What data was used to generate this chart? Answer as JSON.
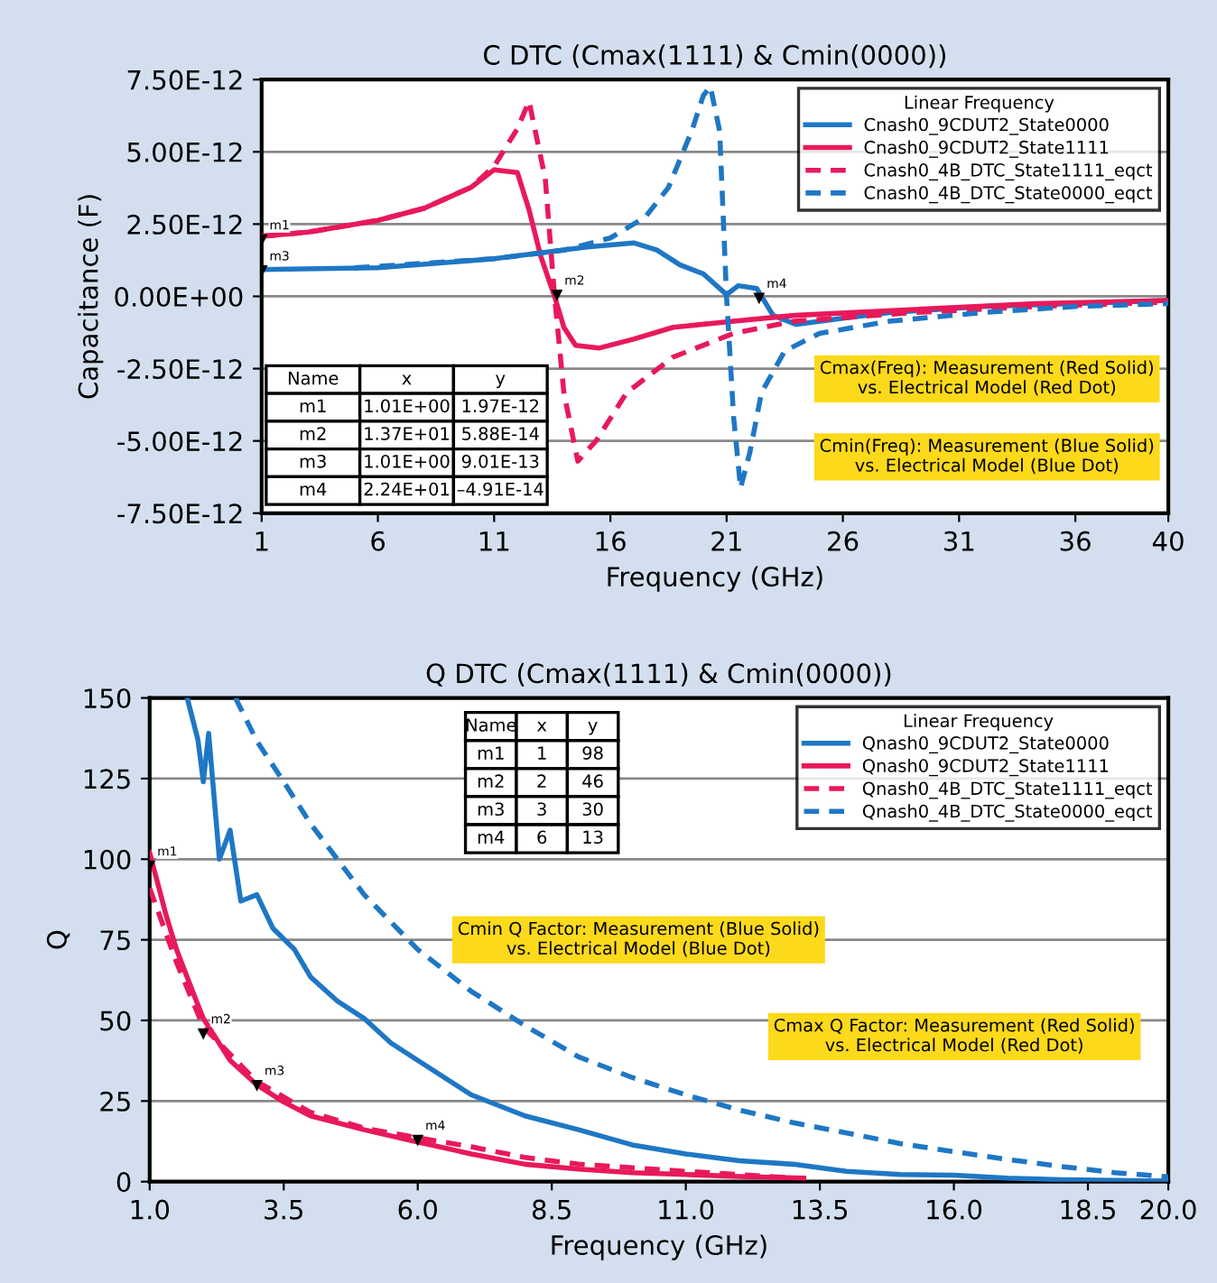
{
  "chart_data": [
    {
      "type": "line",
      "title": "C DTC (Cmax(1111) & Cmin(0000))",
      "xlabel": "Frequency (GHz)",
      "ylabel": "Capacitance (F)",
      "legend_title": "Linear Frequency",
      "legend": "top right",
      "grid": "y",
      "xlim": [
        1,
        40
      ],
      "xticks": [
        1,
        6,
        11,
        16,
        21,
        26,
        31,
        36,
        40
      ],
      "ylim": [
        -7.5e-12,
        7.5e-12
      ],
      "yticks": [
        {
          "value": -7.5e-12,
          "label": "-7.50E-12"
        },
        {
          "value": -5e-12,
          "label": "-5.00E-12"
        },
        {
          "value": -2.5e-12,
          "label": "-2.50E-12"
        },
        {
          "value": 0,
          "label": "0.00E+00"
        },
        {
          "value": 2.5e-12,
          "label": "2.50E-12"
        },
        {
          "value": 5e-12,
          "label": "5.00E-12"
        },
        {
          "value": 7.5e-12,
          "label": "7.50E-12"
        }
      ],
      "series": [
        {
          "name": "Cnash0_9CDUT2_State0000",
          "color": "#1f77c4",
          "line_style": "solid",
          "x": [
            1,
            6,
            11,
            15,
            17,
            18,
            19,
            20,
            21,
            21.5,
            22.3,
            23,
            24,
            26,
            28,
            32,
            36,
            40
          ],
          "values": [
            9.3e-13,
            9.9e-13,
            1.3e-12,
            1.71e-12,
            1.85e-12,
            1.6e-12,
            1.09e-12,
            7.8e-13,
            6e-14,
            3.7e-13,
            2.7e-13,
            -6.6e-13,
            -9.7e-13,
            -7.6e-13,
            -5.6e-13,
            -3.5e-13,
            -2.5e-13,
            -1.4e-13
          ]
        },
        {
          "name": "Cnash0_9CDUT2_State1111",
          "color": "#e8195a",
          "line_style": "solid",
          "x": [
            1,
            3,
            6,
            8,
            10,
            11,
            12,
            12.5,
            13,
            13.6,
            14,
            14.5,
            15.5,
            17,
            18.7,
            21.3,
            23.9,
            29.1,
            34.3,
            40
          ],
          "values": [
            2.08e-12,
            2.22e-12,
            2.63e-12,
            3.05e-12,
            3.77e-12,
            4.38e-12,
            4.28e-12,
            3e-12,
            1.4e-12,
            0,
            -1.07e-12,
            -1.69e-12,
            -1.79e-12,
            -1.48e-12,
            -1.07e-12,
            -8.6e-13,
            -6.6e-13,
            -4.5e-13,
            -2.5e-13,
            -1.4e-13
          ]
        },
        {
          "name": "Cnash0_4B_DTC_State1111_eqct",
          "color": "#e8195a",
          "line_style": "dashed",
          "x": [
            1,
            3,
            6,
            8,
            10,
            11,
            12,
            12.5,
            13.2,
            13.6,
            14,
            14.6,
            15.4,
            16.7,
            18.7,
            21.3,
            23.9,
            29.1,
            34.3,
            40
          ],
          "values": [
            2.08e-12,
            2.22e-12,
            2.63e-12,
            3.05e-12,
            3.77e-12,
            4.5e-12,
            5.8e-12,
            6.75e-12,
            4.07e-12,
            0,
            -3.33e-12,
            -5.7e-12,
            -4.98e-12,
            -3.33e-12,
            -2.1e-12,
            -1.28e-12,
            -8.6e-13,
            -5.6e-13,
            -3.5e-13,
            -2e-13
          ]
        },
        {
          "name": "Cnash0_4B_DTC_State0000_eqct",
          "color": "#1f77c4",
          "line_style": "dashed",
          "x": [
            5,
            11,
            14,
            16,
            17.5,
            18.5,
            19.5,
            20,
            20.3,
            20.7,
            21,
            21.3,
            21.6,
            22,
            22.5,
            23.5,
            25,
            28,
            32,
            36,
            40
          ],
          "values": [
            9.9e-13,
            1.3e-12,
            1.6e-12,
            2.02e-12,
            2.74e-12,
            3.77e-12,
            5.72e-12,
            6.95e-12,
            7.26e-12,
            5.72e-12,
            -4e-14,
            -4.16e-12,
            -6.63e-12,
            -5.4e-12,
            -3.33e-12,
            -1.89e-12,
            -1.28e-12,
            -8.6e-13,
            -5.6e-13,
            -3.5e-13,
            -2.5e-13
          ]
        }
      ],
      "annotations": [
        "Cmax(Freq): Measurement (Red Solid)\nvs. Electrical Model (Red Dot)",
        "Cmin(Freq): Measurement (Blue Solid)\nvs. Electrical Model (Blue Dot)",
        "Name\tx\ty\nm1\t1.01E+00\t1.97E-12\nm2\t1.37E+01\t5.88E-14\nm3\t1.01E+00\t9.01E-13\nm4\t2.24E+01\t–4.91E-14",
        {
          "text": "m1",
          "x": 1.01,
          "y": 1.97e-12
        },
        {
          "text": "m2",
          "x": 13.7,
          "y": 5.88e-14
        },
        {
          "text": "m3",
          "x": 1.01,
          "y": 9.01e-13
        },
        {
          "text": "m4",
          "x": 22.4,
          "y": -4.91e-14
        }
      ]
    },
    {
      "type": "line",
      "title": "Q DTC (Cmax(1111) & Cmin(0000))",
      "xlabel": "Frequency (GHz)",
      "ylabel": "Q",
      "legend_title": "Linear Frequency",
      "legend": "top right",
      "grid": "y",
      "xlim": [
        1.0,
        20.0
      ],
      "xticks": [
        {
          "value": 1.0,
          "label": "1.0"
        },
        {
          "value": 3.5,
          "label": "3.5"
        },
        {
          "value": 6.0,
          "label": "6.0"
        },
        {
          "value": 8.5,
          "label": "8.5"
        },
        {
          "value": 11.0,
          "label": "11.0"
        },
        {
          "value": 13.5,
          "label": "13.5"
        },
        {
          "value": 16.0,
          "label": "16.0"
        },
        {
          "value": 18.5,
          "label": "18.5"
        },
        {
          "value": 20.0,
          "label": "20.0"
        }
      ],
      "ylim": [
        0,
        150
      ],
      "yticks": [
        0,
        25,
        50,
        75,
        100,
        125,
        150
      ],
      "series": [
        {
          "name": "Qnash0_9CDUT2_State0000",
          "color": "#1f77c4",
          "line_style": "solid",
          "x": [
            1.7,
            1.9,
            2.0,
            2.1,
            2.3,
            2.5,
            2.7,
            3.0,
            3.3,
            3.7,
            4,
            4.5,
            5,
            5.5,
            6,
            7,
            8,
            9,
            10,
            11,
            12,
            13,
            14,
            15,
            16,
            17,
            18,
            19,
            20
          ],
          "values": [
            150,
            137,
            124,
            139,
            100,
            109,
            87,
            89,
            78.5,
            72,
            63.5,
            56,
            50.6,
            43,
            37.6,
            26.9,
            20.4,
            16.1,
            11.4,
            8.6,
            6.5,
            5.4,
            3.2,
            2.2,
            2,
            1.1,
            0.6,
            0.4,
            0.2
          ]
        },
        {
          "name": "Qnash0_9CDUT2_State1111",
          "color": "#e8195a",
          "line_style": "solid",
          "x": [
            1,
            1.3,
            1.5,
            1.8,
            2,
            2.5,
            3,
            3.5,
            4,
            5,
            6,
            7,
            8,
            9,
            10,
            11,
            12,
            13.2
          ],
          "values": [
            102,
            83,
            72,
            59,
            50.6,
            37.6,
            30,
            24.7,
            20.4,
            16.1,
            12.3,
            8.6,
            5.4,
            3.9,
            2.8,
            2.2,
            1.6,
            1.1
          ]
        },
        {
          "name": "Qnash0_4B_DTC_State1111_eqct",
          "color": "#e8195a",
          "line_style": "dashed",
          "x": [
            1,
            1.5,
            2,
            3,
            4,
            5,
            6,
            7,
            8,
            9,
            10,
            11,
            12,
            13
          ],
          "values": [
            91,
            68,
            48,
            31,
            21.5,
            16.6,
            13.6,
            10.8,
            7.5,
            5.4,
            4.3,
            3.2,
            2.2,
            1.1
          ]
        },
        {
          "name": "Qnash0_4B_DTC_State0000_eqct",
          "color": "#1f77c4",
          "line_style": "dashed",
          "x": [
            2.6,
            3,
            3.5,
            4,
            5,
            6,
            7,
            8,
            9,
            10,
            11,
            12,
            13,
            14,
            15,
            16,
            17,
            18,
            19,
            20
          ],
          "values": [
            150,
            136.6,
            124,
            111,
            89,
            72,
            59,
            48.4,
            38.7,
            32.3,
            26.9,
            22.2,
            18.3,
            15.1,
            11.8,
            9.3,
            6.9,
            4.7,
            2.8,
            1.5
          ]
        }
      ],
      "annotations": [
        "Cmin Q Factor: Measurement (Blue Solid)\nvs. Electrical Model (Blue Dot)",
        "Cmax Q Factor: Measurement (Red Solid)\nvs. Electrical Model (Red Dot)",
        "Name\tx\ty\nm1\t1\t98\nm2\t2\t46\nm3\t3\t30\nm4\t6\t13",
        {
          "text": "m1",
          "x": 1,
          "y": 98
        },
        {
          "text": "m2",
          "x": 2,
          "y": 46
        },
        {
          "text": "m3",
          "x": 3,
          "y": 30
        },
        {
          "text": "m4",
          "x": 6,
          "y": 13
        }
      ]
    }
  ]
}
